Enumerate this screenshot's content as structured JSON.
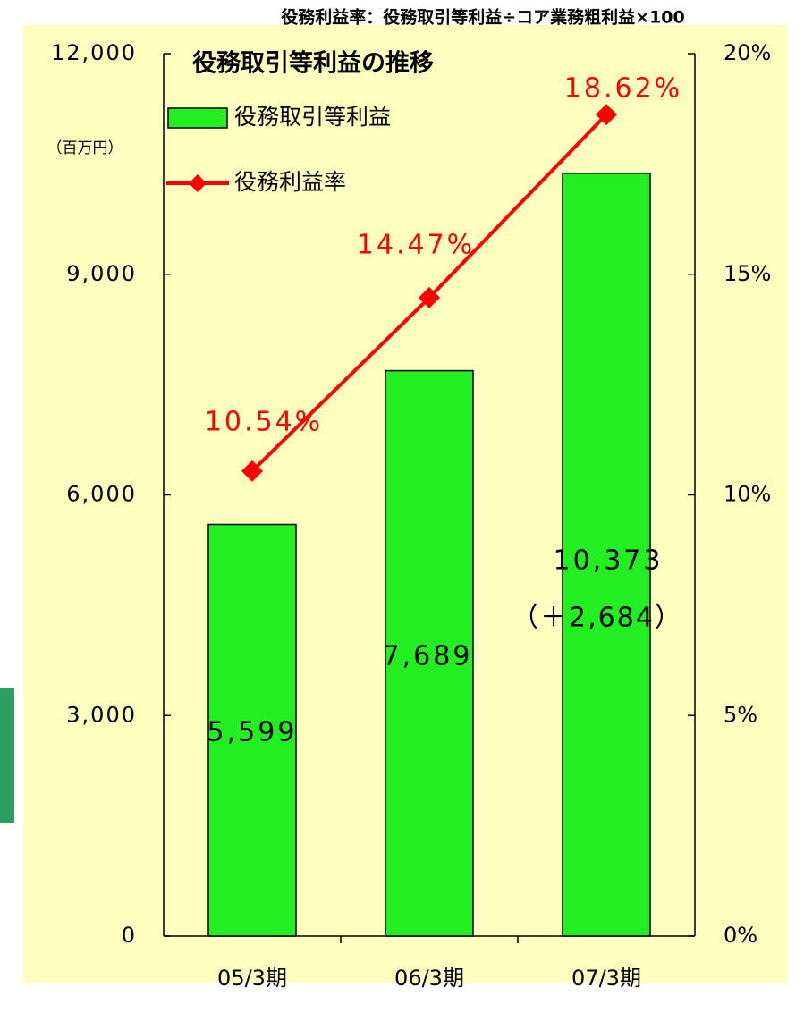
{
  "chart_data": {
    "type": "bar",
    "title": "役務取引等利益の推移",
    "subtitle": "役務利益率：役務取引等利益÷コア業務粗利益×100",
    "y_label": "（百万円）",
    "categories": [
      "05/3期",
      "06/3期",
      "07/3期"
    ],
    "series": [
      {
        "name": "役務取引等利益",
        "type": "bar",
        "color": "#22ee22",
        "values": [
          5599,
          7689,
          10373
        ],
        "value_labels": [
          "5,599",
          "7,689",
          "10,373"
        ]
      },
      {
        "name": "役務利益率",
        "type": "line",
        "axis": "y2",
        "color": "#ff0000",
        "values": [
          10.54,
          14.47,
          18.62
        ],
        "value_labels": [
          "10.54%",
          "14.47%",
          "18.62%"
        ]
      }
    ],
    "annotations": [
      "（＋2,684）"
    ],
    "ylim": [
      0,
      12000
    ],
    "yticks": [
      0,
      {
        "value": 3000,
        "label": "3,000"
      },
      {
        "value": 6000,
        "label": "6,000"
      },
      {
        "value": 9000,
        "label": "9,000"
      },
      {
        "value": 12000,
        "label": "12,000"
      }
    ],
    "y2lim": [
      0,
      20
    ],
    "y2ticks": [
      {
        "value": 0,
        "label": "0%"
      },
      {
        "value": 5,
        "label": "5%"
      },
      {
        "value": 10,
        "label": "10%"
      },
      {
        "value": 15,
        "label": "15%"
      },
      {
        "value": 20,
        "label": "20%"
      }
    ]
  }
}
